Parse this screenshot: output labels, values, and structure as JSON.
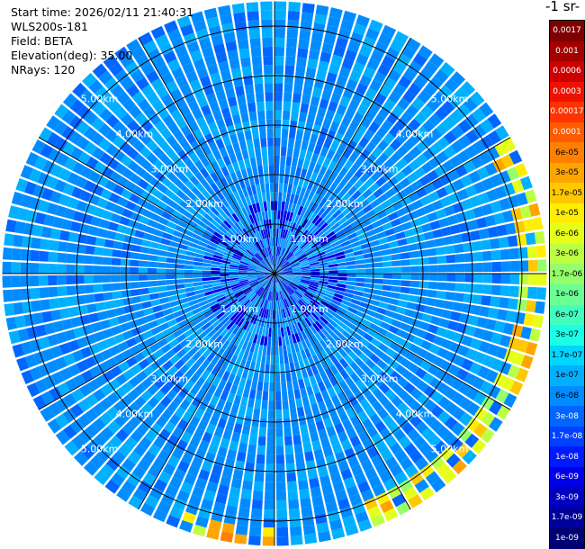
{
  "header": {
    "start_time": "Start time: 2026/02/11 21:40:31",
    "instrument": "WLS200s-181",
    "field": "Field: BETA",
    "elevation": "Elevation(deg): 35.00",
    "nrays": "NRays: 120"
  },
  "colorbar": {
    "title": "-1 sr-",
    "ticks": [
      "0.0017",
      "0.001",
      "0.0006",
      "0.0003",
      "0.00017",
      "0.0001",
      "6e-05",
      "3e-05",
      "1.7e-05",
      "1e-05",
      "6e-06",
      "3e-06",
      "1.7e-06",
      "1e-06",
      "6e-07",
      "3e-07",
      "1.7e-07",
      "1e-07",
      "6e-08",
      "3e-08",
      "1.7e-08",
      "1e-08",
      "6e-09",
      "3e-09",
      "1.7e-09",
      "1e-09"
    ],
    "colors": [
      "#7f0000",
      "#a40000",
      "#cc0000",
      "#ee1100",
      "#ff3300",
      "#ff5a00",
      "#ff8000",
      "#ffa500",
      "#ffc800",
      "#ffee00",
      "#e6ff1a",
      "#bdff42",
      "#94ff6a",
      "#6bff94",
      "#42ffbd",
      "#1affe6",
      "#00d6ff",
      "#00b0ff",
      "#008cff",
      "#0066ff",
      "#0040ff",
      "#001aff",
      "#0000e6",
      "#0000c0",
      "#00009a",
      "#000073"
    ]
  },
  "chart_data": {
    "type": "heatmap",
    "projection": "polar",
    "field": "BETA",
    "range_rings_km": [
      1,
      2,
      3,
      4,
      5
    ],
    "ring_label": "km",
    "ring_labels": [
      "1.00km",
      "2.00km",
      "3.00km",
      "4.00km",
      "5.00km"
    ],
    "max_range_km": 5.5,
    "nrays": 120,
    "gridlines_deg": [
      0,
      30,
      60,
      90,
      120,
      150,
      180,
      210,
      240,
      270,
      300,
      330
    ],
    "background_value": 6e-08,
    "enhanced_sectors": [
      {
        "azimuth_deg": [
          60,
          160
        ],
        "range_km": [
          5.0,
          5.5
        ],
        "peak_value": 3e-05
      },
      {
        "azimuth_deg": [
          180,
          200
        ],
        "range_km": [
          5.2,
          5.5
        ],
        "peak_value": 6e-05
      }
    ]
  }
}
